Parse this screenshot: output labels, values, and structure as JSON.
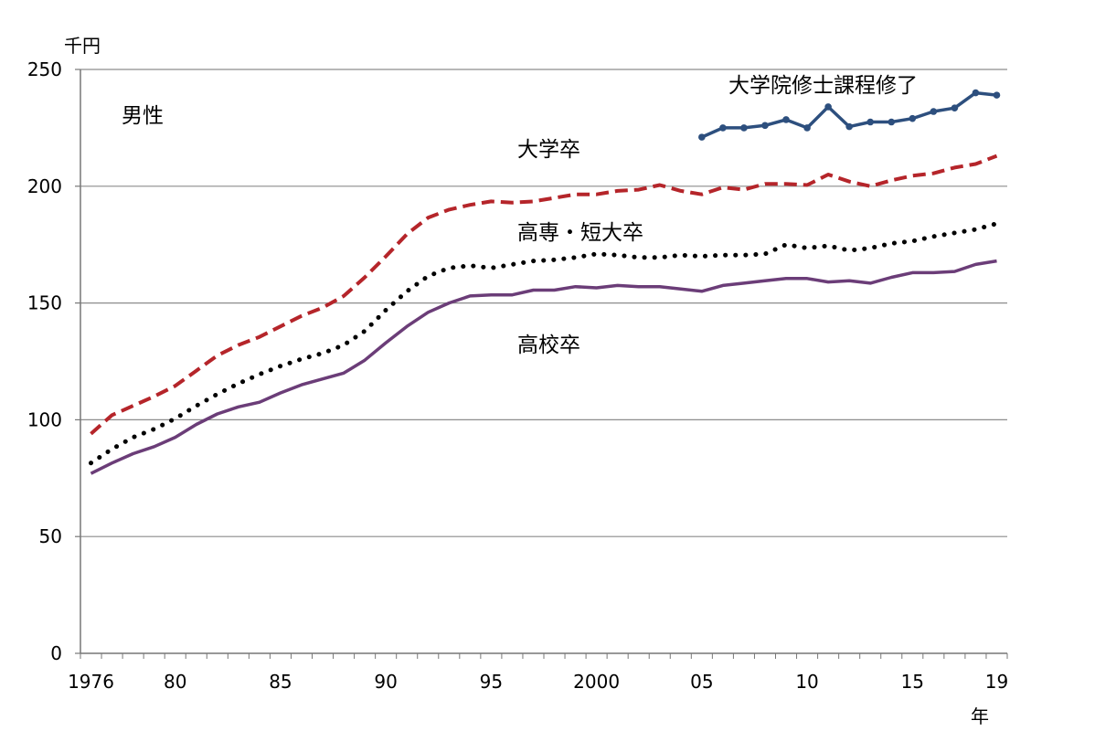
{
  "chart_data": {
    "type": "line",
    "title": "",
    "subtitle": "男性",
    "ylabel": "千円",
    "xlabel": "年",
    "ylim": [
      0,
      250
    ],
    "xlim": [
      1975.5,
      2019.5
    ],
    "grid": true,
    "legend": "none",
    "yticks": [
      0,
      50,
      100,
      150,
      200,
      250
    ],
    "xticks": [
      {
        "value": 1976,
        "label": "1976"
      },
      {
        "value": 1980,
        "label": "80"
      },
      {
        "value": 1985,
        "label": "85"
      },
      {
        "value": 1990,
        "label": "90"
      },
      {
        "value": 1995,
        "label": "95"
      },
      {
        "value": 2000,
        "label": "2000"
      },
      {
        "value": 2005,
        "label": "05"
      },
      {
        "value": 2010,
        "label": "10"
      },
      {
        "value": 2015,
        "label": "15"
      },
      {
        "value": 2019,
        "label": "19"
      }
    ],
    "series": [
      {
        "name": "大学院修士課程修了",
        "color": "#2d4f7e",
        "style": "solid-marker",
        "x": [
          2005,
          2006,
          2007,
          2008,
          2009,
          2010,
          2011,
          2012,
          2013,
          2014,
          2015,
          2016,
          2017,
          2018,
          2019
        ],
        "values": [
          221,
          225,
          225,
          226,
          228.5,
          225,
          234,
          225.5,
          227.5,
          227.5,
          229,
          232,
          233.5,
          240,
          239
        ]
      },
      {
        "name": "大学卒",
        "color": "#b5252a",
        "style": "dashed",
        "x": [
          1976,
          1977,
          1978,
          1979,
          1980,
          1981,
          1982,
          1983,
          1984,
          1985,
          1986,
          1987,
          1988,
          1989,
          1990,
          1991,
          1992,
          1993,
          1994,
          1995,
          1996,
          1997,
          1998,
          1999,
          2000,
          2001,
          2002,
          2003,
          2004,
          2005,
          2006,
          2007,
          2008,
          2009,
          2010,
          2011,
          2012,
          2013,
          2014,
          2015,
          2016,
          2017,
          2018,
          2019
        ],
        "values": [
          94,
          102,
          106,
          110,
          114.5,
          121,
          127.5,
          132,
          135.5,
          140,
          144.5,
          148,
          153,
          161,
          170,
          179.5,
          186.5,
          190,
          192,
          193.5,
          193,
          193.5,
          195,
          196.5,
          196.5,
          198,
          198.5,
          200.5,
          198,
          196.5,
          199.5,
          198.5,
          201,
          201,
          200.5,
          205,
          202,
          200,
          202.5,
          204.5,
          205.5,
          208,
          209.5,
          213
        ]
      },
      {
        "name": "高専・短大卒",
        "color": "#000000",
        "style": "dotted",
        "x": [
          1976,
          1977,
          1978,
          1979,
          1980,
          1981,
          1982,
          1983,
          1984,
          1985,
          1986,
          1987,
          1988,
          1989,
          1990,
          1991,
          1992,
          1993,
          1994,
          1995,
          1996,
          1997,
          1998,
          1999,
          2000,
          2001,
          2002,
          2003,
          2004,
          2005,
          2006,
          2007,
          2008,
          2009,
          2010,
          2011,
          2012,
          2013,
          2014,
          2015,
          2016,
          2017,
          2018,
          2019
        ],
        "values": [
          81.5,
          87.5,
          92.5,
          96,
          100.5,
          106,
          111,
          115.5,
          119.5,
          123,
          126,
          128.5,
          132,
          138,
          147,
          155,
          161.5,
          165,
          166,
          165,
          166.5,
          168,
          168.5,
          169.5,
          171,
          170.5,
          169.5,
          169.5,
          170.5,
          170,
          170.5,
          170.5,
          171,
          175,
          173.5,
          174.5,
          172.5,
          173.5,
          175.5,
          176.5,
          178.5,
          180,
          181.5,
          184
        ]
      },
      {
        "name": "高校卒",
        "color": "#6b3d78",
        "style": "solid",
        "x": [
          1976,
          1977,
          1978,
          1979,
          1980,
          1981,
          1982,
          1983,
          1984,
          1985,
          1986,
          1987,
          1988,
          1989,
          1990,
          1991,
          1992,
          1993,
          1994,
          1995,
          1996,
          1997,
          1998,
          1999,
          2000,
          2001,
          2002,
          2003,
          2004,
          2005,
          2006,
          2007,
          2008,
          2009,
          2010,
          2011,
          2012,
          2013,
          2014,
          2015,
          2016,
          2017,
          2018,
          2019
        ],
        "values": [
          77,
          81.5,
          85.5,
          88.5,
          92.5,
          98,
          102.5,
          105.5,
          107.5,
          111.5,
          115,
          117.5,
          120,
          125.5,
          133,
          140,
          146,
          150,
          153,
          153.5,
          153.5,
          155.5,
          155.5,
          157,
          156.5,
          157.5,
          157,
          157,
          156,
          155,
          157.5,
          158.5,
          159.5,
          160.5,
          160.5,
          159,
          159.5,
          158.5,
          161,
          163,
          163,
          163.5,
          166.5,
          168
        ]
      }
    ]
  }
}
